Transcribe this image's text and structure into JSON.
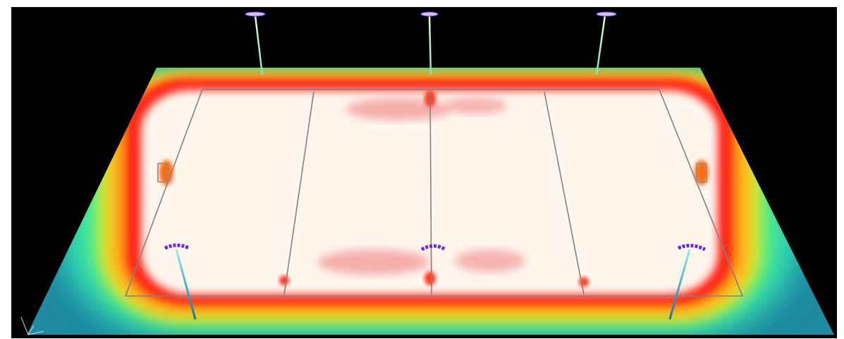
{
  "scene": {
    "description_hidden": "",
    "background_color": "#000000",
    "frame_color": "#ffffff",
    "heatmap_colors": [
      "#1e7f9a",
      "#27c7c0",
      "#3ff08a",
      "#d8f23a",
      "#ffd21a",
      "#ff8a10",
      "#ff2a12",
      "#fff7ee"
    ],
    "pole_color": "#6fd2c8",
    "luminaire_color": "#6a2bd8",
    "field_line_color": "#8c7c7c",
    "light_poles": {
      "top": [
        "pole-top-left",
        "pole-top-center",
        "pole-top-right"
      ],
      "bottom": [
        "pole-bottom-left",
        "pole-bottom-center",
        "pole-bottom-right"
      ]
    }
  }
}
